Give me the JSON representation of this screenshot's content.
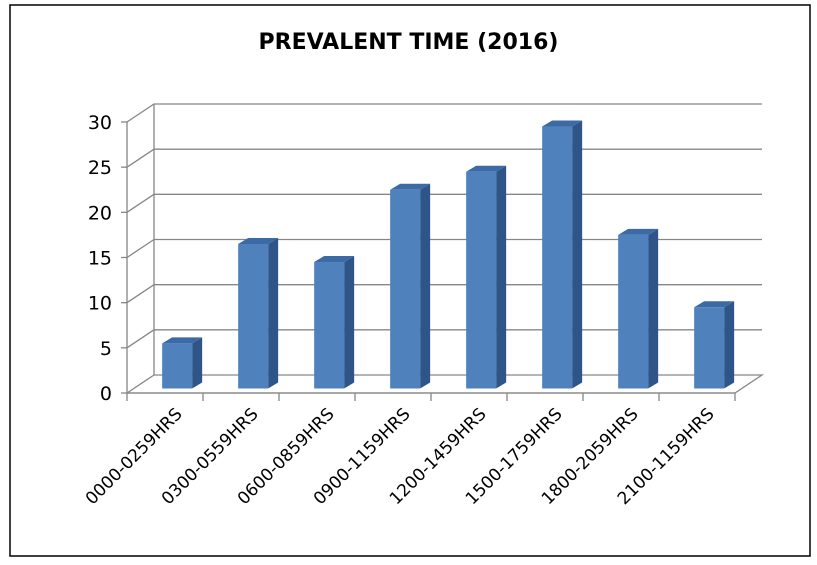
{
  "chart_data": {
    "type": "bar",
    "title": "PREVALENT TIME (2016)",
    "xlabel": "",
    "ylabel": "",
    "categories": [
      "0000-0259HRS",
      "0300-0559HRS",
      "0600-0859HRS",
      "0900-1159HRS",
      "1200-1459HRS",
      "1500-1759HRS",
      "1800-2059HRS",
      "2100-1159HRS"
    ],
    "values": [
      5,
      16,
      14,
      22,
      24,
      29,
      17,
      9
    ],
    "ylim": [
      0,
      30
    ],
    "yticks": [
      0,
      5,
      10,
      15,
      20,
      25,
      30
    ],
    "grid": true,
    "legend": "none",
    "bar_color": "#4F81BD"
  }
}
